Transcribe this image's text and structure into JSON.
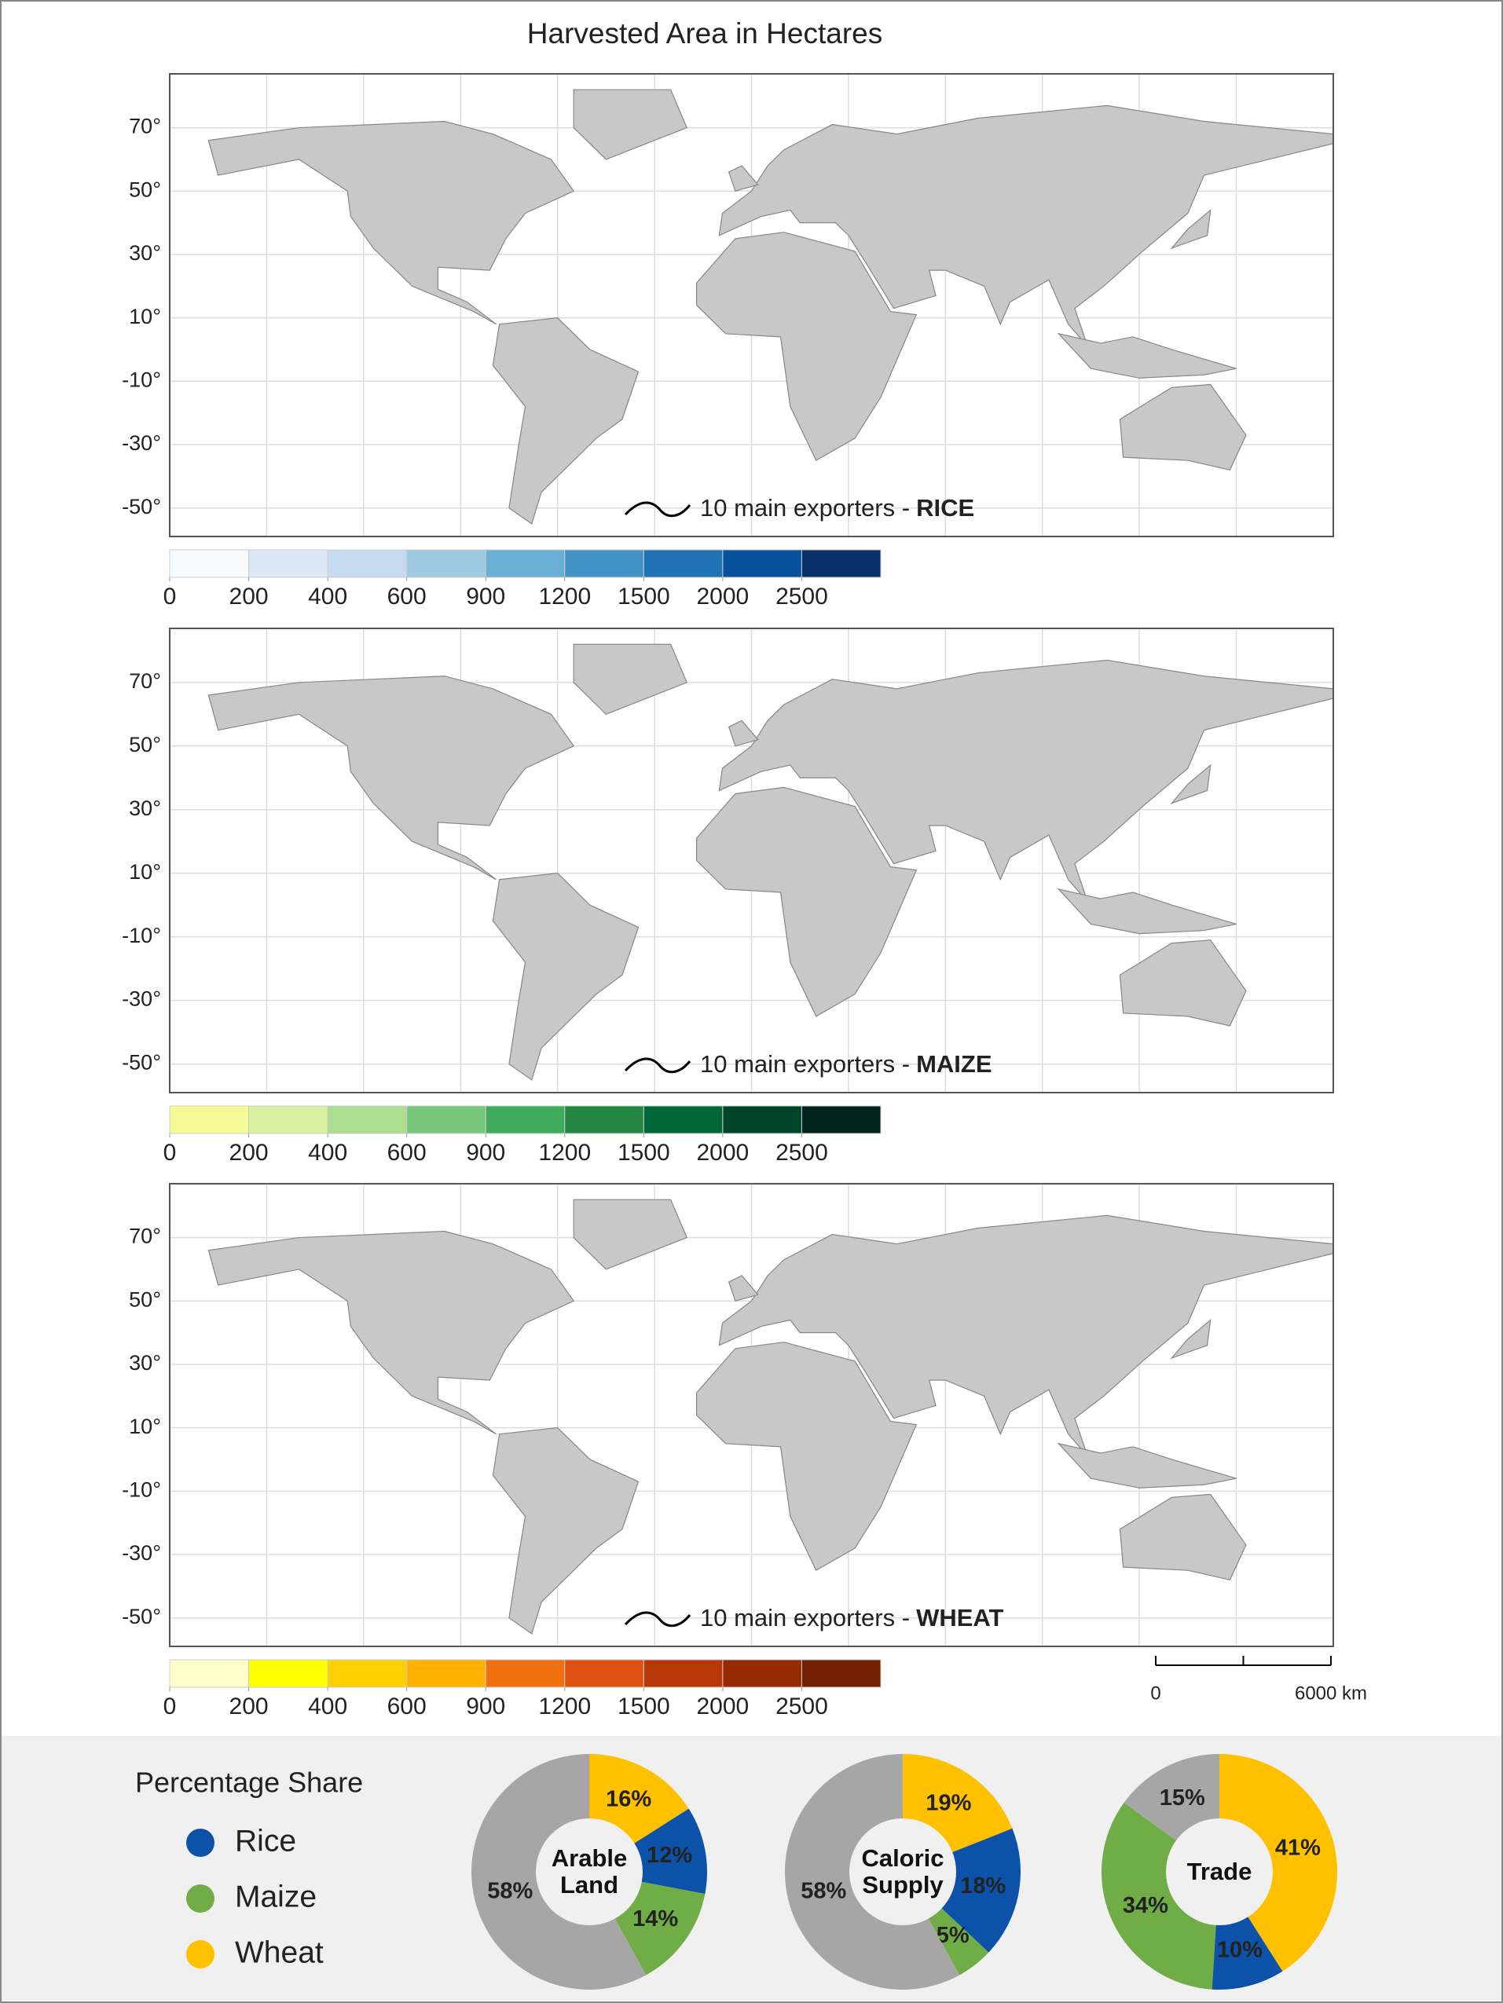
{
  "header": {
    "title": "Harvested Area in Hectares"
  },
  "maps": [
    {
      "legend_label": "10 main exporters -",
      "crop": "RICE",
      "ylim": [
        -59,
        87
      ],
      "yticks": [
        {
          "value": 70,
          "label": "70°"
        },
        {
          "value": 50,
          "label": "50°"
        },
        {
          "value": 30,
          "label": "30°"
        },
        {
          "value": 10,
          "label": "10°"
        },
        {
          "value": -10,
          "label": "-10°"
        },
        {
          "value": -30,
          "label": "-30°"
        },
        {
          "value": -50,
          "label": "-50°"
        }
      ],
      "colorbar": {
        "colors": [
          "#f7fbff",
          "#dbe9f6",
          "#c6dbef",
          "#9ecae1",
          "#6baed6",
          "#4292c6",
          "#2171b5",
          "#08519c",
          "#08306b"
        ],
        "ticks": [
          0,
          200,
          400,
          600,
          900,
          1200,
          1500,
          2000,
          2500
        ]
      }
    },
    {
      "legend_label": "10 main exporters -",
      "crop": "MAIZE",
      "ylim": [
        -59,
        87
      ],
      "yticks": [
        {
          "value": 70,
          "label": "70°"
        },
        {
          "value": 50,
          "label": "50°"
        },
        {
          "value": 30,
          "label": "30°"
        },
        {
          "value": 10,
          "label": "10°"
        },
        {
          "value": -10,
          "label": "-10°"
        },
        {
          "value": -30,
          "label": "-30°"
        },
        {
          "value": -50,
          "label": "-50°"
        }
      ],
      "colorbar": {
        "colors": [
          "#f6fa96",
          "#d9f0a3",
          "#addd8e",
          "#78c679",
          "#41ab5d",
          "#238443",
          "#006837",
          "#004529",
          "#00231f"
        ],
        "ticks": [
          0,
          200,
          400,
          600,
          900,
          1200,
          1500,
          2000,
          2500
        ]
      }
    },
    {
      "legend_label": "10 main exporters -",
      "crop": "WHEAT",
      "ylim": [
        -59,
        87
      ],
      "yticks": [
        {
          "value": 70,
          "label": "70°"
        },
        {
          "value": 50,
          "label": "50°"
        },
        {
          "value": 30,
          "label": "30°"
        },
        {
          "value": 10,
          "label": "10°"
        },
        {
          "value": -10,
          "label": "-10°"
        },
        {
          "value": -30,
          "label": "-30°"
        },
        {
          "value": -50,
          "label": "-50°"
        }
      ],
      "colorbar": {
        "colors": [
          "#ffffcc",
          "#ffff00",
          "#ffd000",
          "#ffb000",
          "#f07010",
          "#e05010",
          "#b83808",
          "#962a04",
          "#722000"
        ],
        "ticks": [
          0,
          200,
          400,
          600,
          900,
          1200,
          1500,
          2000,
          2500
        ]
      }
    }
  ],
  "scale_bar": {
    "xlim": [
      0,
      6000
    ],
    "ticks": [
      {
        "value": 0,
        "label": "0"
      },
      {
        "value": 6000,
        "label": "6000 km"
      }
    ]
  },
  "legend": {
    "title": "Percentage Share",
    "series": [
      {
        "name": "Rice",
        "color": "#0b52a8"
      },
      {
        "name": "Maize",
        "color": "#70ad47"
      },
      {
        "name": "Wheat",
        "color": "#ffc000"
      }
    ]
  },
  "chart_data": [
    {
      "type": "pie",
      "title": "Arable Land",
      "values": [
        16,
        12,
        14,
        58
      ],
      "value_labels": [
        "16%",
        "12%",
        "14%",
        "58%"
      ],
      "colors": [
        "#ffc000",
        "#0b52a8",
        "#70ad47",
        "#a6a6a6"
      ]
    },
    {
      "type": "pie",
      "title": "Caloric Supply",
      "values": [
        19,
        18,
        5,
        58
      ],
      "value_labels": [
        "19%",
        "18%",
        "5%",
        "58%"
      ],
      "colors": [
        "#ffc000",
        "#0b52a8",
        "#70ad47",
        "#a6a6a6"
      ]
    },
    {
      "type": "pie",
      "title": "Trade",
      "values": [
        41,
        10,
        34,
        15
      ],
      "value_labels": [
        "41%",
        "10%",
        "34%",
        "15%"
      ],
      "colors": [
        "#ffc000",
        "#0b52a8",
        "#70ad47",
        "#a6a6a6"
      ]
    }
  ]
}
